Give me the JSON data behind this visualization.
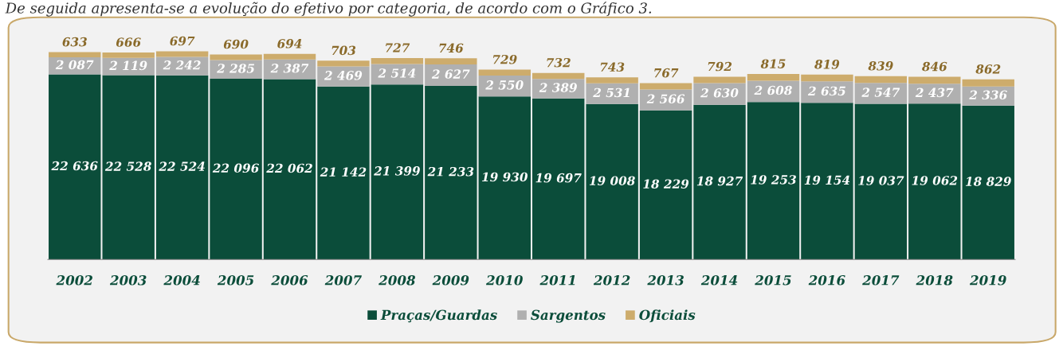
{
  "chart_data": {
    "type": "bar",
    "stacked": true,
    "title": "De seguida apresenta-se a evolução do efetivo por categoria, de acordo com o Gráfico 3.",
    "categories": [
      "2002",
      "2003",
      "2004",
      "2005",
      "2006",
      "2007",
      "2008",
      "2009",
      "2010",
      "2011",
      "2012",
      "2013",
      "2014",
      "2015",
      "2016",
      "2017",
      "2018",
      "2019"
    ],
    "series": [
      {
        "name": "Praças/Guardas",
        "color": "#0b4d3a",
        "values": [
          22636,
          22528,
          22524,
          22096,
          22062,
          21142,
          21399,
          21233,
          19930,
          19697,
          19008,
          18229,
          18927,
          19253,
          19154,
          19037,
          19062,
          18829
        ],
        "value_labels": [
          "22 636",
          "22 528",
          "22 524",
          "22 096",
          "22 062",
          "21 142",
          "21 399",
          "21 233",
          "19 930",
          "19 697",
          "19 008",
          "18 229",
          "18 927",
          "19 253",
          "19 154",
          "19 037",
          "19 062",
          "18 829"
        ]
      },
      {
        "name": "Sargentos",
        "color": "#b0b0b0",
        "values": [
          2087,
          2119,
          2242,
          2285,
          2387,
          2469,
          2514,
          2627,
          2550,
          2389,
          2531,
          2566,
          2630,
          2608,
          2635,
          2547,
          2437,
          2336
        ],
        "value_labels": [
          "2 087",
          "2 119",
          "2 242",
          "2 285",
          "2 387",
          "2 469",
          "2 514",
          "2 627",
          "2 550",
          "2 389",
          "2 531",
          "2 566",
          "2 630",
          "2 608",
          "2 635",
          "2 547",
          "2 437",
          "2 336"
        ]
      },
      {
        "name": "Oficiais",
        "color": "#cdac6c",
        "values": [
          633,
          666,
          697,
          690,
          694,
          703,
          727,
          746,
          729,
          732,
          743,
          767,
          792,
          815,
          819,
          839,
          846,
          862
        ],
        "value_labels": [
          "633",
          "666",
          "697",
          "690",
          "694",
          "703",
          "727",
          "746",
          "729",
          "732",
          "743",
          "767",
          "792",
          "815",
          "819",
          "839",
          "846",
          "862"
        ]
      }
    ],
    "legend": "bottom",
    "grid": false
  }
}
